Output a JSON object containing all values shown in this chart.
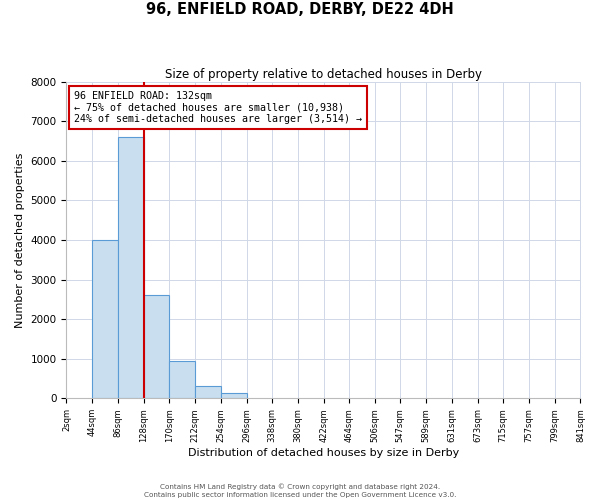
{
  "title": "96, ENFIELD ROAD, DERBY, DE22 4DH",
  "subtitle": "Size of property relative to detached houses in Derby",
  "xlabel": "Distribution of detached houses by size in Derby",
  "ylabel": "Number of detached properties",
  "bin_edges": [
    2,
    44,
    86,
    128,
    170,
    212,
    254,
    296,
    338,
    380,
    422,
    464,
    506,
    547,
    589,
    631,
    673,
    715,
    757,
    799,
    841
  ],
  "bar_heights": [
    0,
    4000,
    6600,
    2600,
    950,
    320,
    130,
    0,
    0,
    0,
    0,
    0,
    0,
    0,
    0,
    0,
    0,
    0,
    0,
    0
  ],
  "tick_labels": [
    "2sqm",
    "44sqm",
    "86sqm",
    "128sqm",
    "170sqm",
    "212sqm",
    "254sqm",
    "296sqm",
    "338sqm",
    "380sqm",
    "422sqm",
    "464sqm",
    "506sqm",
    "547sqm",
    "589sqm",
    "631sqm",
    "673sqm",
    "715sqm",
    "757sqm",
    "799sqm",
    "841sqm"
  ],
  "bar_color": "#c9dff0",
  "bar_edge_color": "#5b9bd5",
  "property_line_x": 128,
  "property_line_color": "#cc0000",
  "annotation_box_color": "#cc0000",
  "annotation_title": "96 ENFIELD ROAD: 132sqm",
  "annotation_line1": "← 75% of detached houses are smaller (10,938)",
  "annotation_line2": "24% of semi-detached houses are larger (3,514) →",
  "ylim": [
    0,
    8000
  ],
  "yticks": [
    0,
    1000,
    2000,
    3000,
    4000,
    5000,
    6000,
    7000,
    8000
  ],
  "footer1": "Contains HM Land Registry data © Crown copyright and database right 2024.",
  "footer2": "Contains public sector information licensed under the Open Government Licence v3.0.",
  "background_color": "#ffffff",
  "grid_color": "#d0d8e8"
}
